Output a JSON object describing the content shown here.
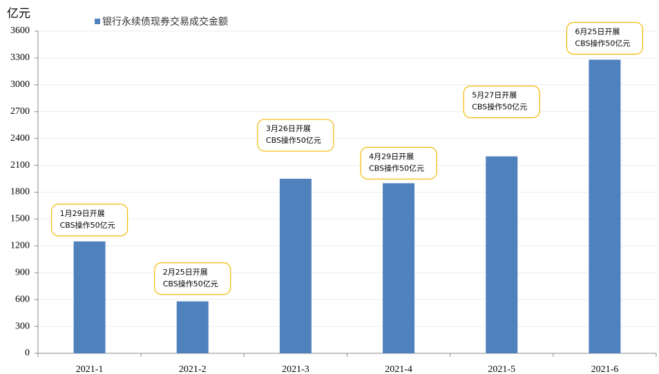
{
  "chart_data": {
    "type": "bar",
    "y_label": "亿元",
    "categories": [
      "2021-1",
      "2021-2",
      "2021-3",
      "2021-4",
      "2021-5",
      "2021-6"
    ],
    "series": [
      {
        "name": "银行永续债现券交易成交金额",
        "color": "#4f81bd",
        "values": [
          1250,
          580,
          1950,
          1900,
          2200,
          3280
        ]
      }
    ],
    "ylim": [
      0,
      3600
    ],
    "yticks": [
      0,
      300,
      600,
      900,
      1200,
      1500,
      1800,
      2100,
      2400,
      2700,
      3000,
      3300,
      3600
    ],
    "grid": true,
    "annotations": [
      [
        "1月29日开展",
        "CBS操作50亿元"
      ],
      [
        "2月25日开展",
        "CBS操作50亿元"
      ],
      [
        "3月26日开展",
        "CBS操作50亿元"
      ],
      [
        "4月29日开展",
        "CBS操作50亿元"
      ],
      [
        "5月27日开展",
        "CBS操作50亿元"
      ],
      [
        "6月25日开展",
        "CBS操作50亿元"
      ]
    ]
  }
}
